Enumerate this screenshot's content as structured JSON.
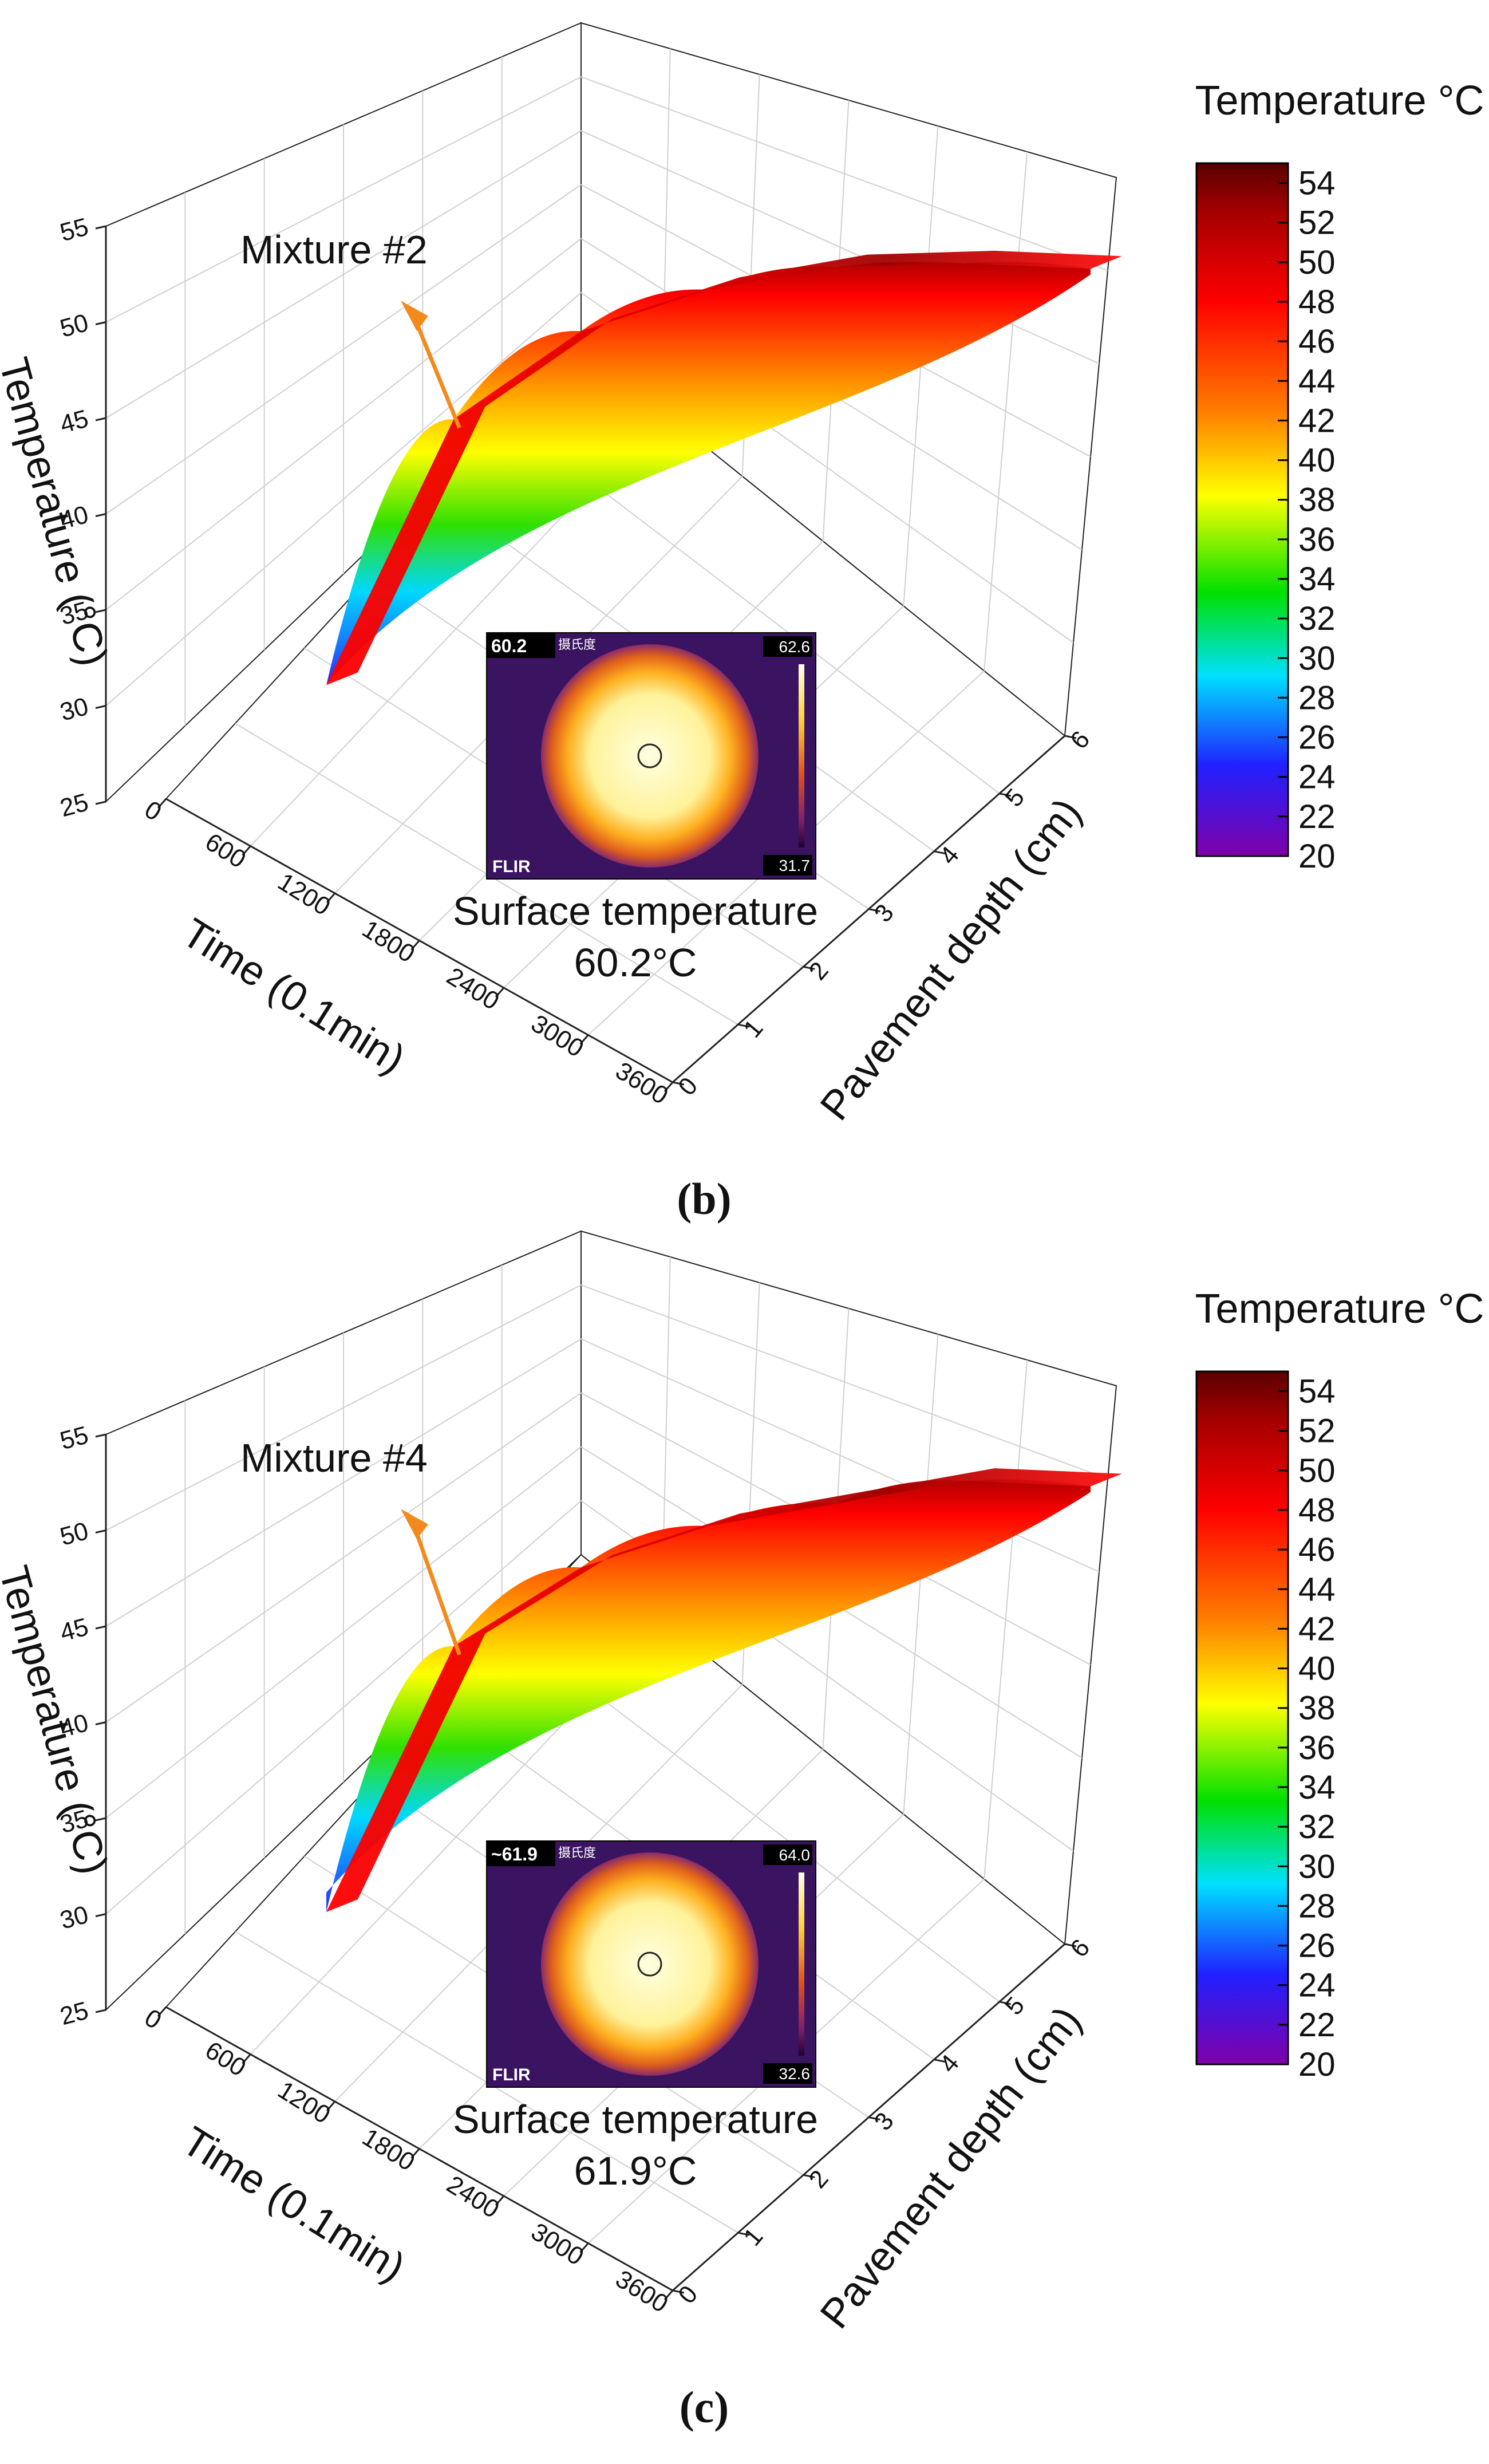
{
  "panels": [
    {
      "panel_label": "(b)",
      "annotation": "Mixture #2",
      "inset": {
        "surface_line1": "Surface temperature",
        "surface_line2": "60.2°C",
        "reading": "60.2",
        "unit": "摄氏度",
        "scale_max": "62.6",
        "scale_min": "31.7",
        "brand": "FLIR"
      }
    },
    {
      "panel_label": "(c)",
      "annotation": "Mixture #4",
      "inset": {
        "surface_line1": "Surface temperature",
        "surface_line2": "61.9°C",
        "reading": "~61.9",
        "unit": "摄氏度",
        "scale_max": "64.0",
        "scale_min": "32.6",
        "brand": "FLIR"
      }
    }
  ],
  "chart_data": [
    {
      "type": "surface",
      "panel": "(b)",
      "title": "Mixture #2",
      "xlabel": "Time (0.1min)",
      "ylabel": "Pavement depth (cm)",
      "zlabel": "Temperature (°C)",
      "x_ticks": [
        "0",
        "600",
        "1200",
        "1800",
        "2400",
        "3000",
        "3600"
      ],
      "y_ticks": [
        "0",
        "1",
        "2",
        "3",
        "4",
        "5",
        "6"
      ],
      "z_ticks": [
        "25",
        "30",
        "35",
        "40",
        "45",
        "50",
        "55"
      ],
      "xlim": [
        0,
        3600
      ],
      "ylim": [
        0,
        6
      ],
      "zlim": [
        25,
        55
      ],
      "surface_time": [
        0,
        600,
        1200,
        1800,
        2400,
        3000,
        3600
      ],
      "surface_temperature": [
        32,
        44.5,
        47.5,
        48,
        47.5,
        46,
        44
      ],
      "colorbar": {
        "title": "Temperature °C",
        "ticks": [
          "54",
          "52",
          "50",
          "48",
          "46",
          "44",
          "42",
          "40",
          "38",
          "36",
          "34",
          "32",
          "30",
          "28",
          "26",
          "24",
          "22",
          "20"
        ],
        "range": [
          20,
          55
        ]
      }
    },
    {
      "type": "surface",
      "panel": "(c)",
      "title": "Mixture #4",
      "xlabel": "Time (0.1min)",
      "ylabel": "Pavement depth (cm)",
      "zlabel": "Temperature (°C)",
      "x_ticks": [
        "0",
        "600",
        "1200",
        "1800",
        "2400",
        "3000",
        "3600"
      ],
      "y_ticks": [
        "0",
        "1",
        "2",
        "3",
        "4",
        "5",
        "6"
      ],
      "z_ticks": [
        "25",
        "30",
        "35",
        "40",
        "45",
        "50",
        "55"
      ],
      "xlim": [
        0,
        3600
      ],
      "ylim": [
        0,
        6
      ],
      "zlim": [
        25,
        55
      ],
      "surface_time": [
        0,
        600,
        1200,
        1800,
        2400,
        3000,
        3600
      ],
      "surface_temperature": [
        31,
        43.5,
        46,
        46.5,
        46,
        45.5,
        43.5
      ],
      "colorbar": {
        "title": "Temperature °C",
        "ticks": [
          "54",
          "52",
          "50",
          "48",
          "46",
          "44",
          "42",
          "40",
          "38",
          "36",
          "34",
          "32",
          "30",
          "28",
          "26",
          "24",
          "22",
          "20"
        ],
        "range": [
          20,
          55
        ]
      }
    }
  ],
  "colors": {
    "arrow": "#f28a1e",
    "grid": "#d0d0d0",
    "axis": "#222222",
    "inset_bg": "#3a1460"
  }
}
